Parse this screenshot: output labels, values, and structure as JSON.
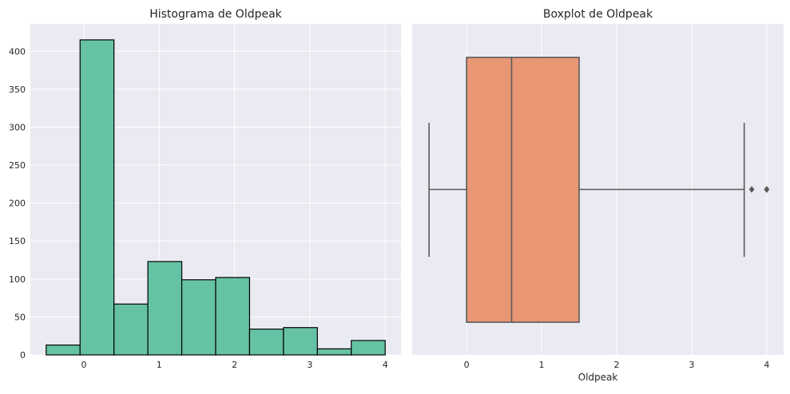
{
  "colors": {
    "plot_bg": "#eaeaf2",
    "grid": "#ffffff",
    "hist_fill": "#66c2a5",
    "hist_edge": "#000000",
    "box_fill": "#e99675",
    "box_line": "#595959"
  },
  "chart_data": [
    {
      "type": "histogram",
      "title": "Histograma de Oldpeak",
      "xlabel": "",
      "ylabel": "",
      "xlim": [
        -0.71,
        4.21
      ],
      "ylim": [
        0,
        436
      ],
      "xticks": [
        0,
        1,
        2,
        3,
        4
      ],
      "yticks": [
        0,
        50,
        100,
        150,
        200,
        250,
        300,
        350,
        400
      ],
      "grid": true,
      "bins": [
        {
          "x0": -0.5,
          "x1": -0.05,
          "count": 13
        },
        {
          "x0": -0.05,
          "x1": 0.4,
          "count": 415
        },
        {
          "x0": 0.4,
          "x1": 0.85,
          "count": 67
        },
        {
          "x0": 0.85,
          "x1": 1.3,
          "count": 123
        },
        {
          "x0": 1.3,
          "x1": 1.75,
          "count": 99
        },
        {
          "x0": 1.75,
          "x1": 2.2,
          "count": 102
        },
        {
          "x0": 2.2,
          "x1": 2.65,
          "count": 34
        },
        {
          "x0": 2.65,
          "x1": 3.1,
          "count": 36
        },
        {
          "x0": 3.1,
          "x1": 3.55,
          "count": 8
        },
        {
          "x0": 3.55,
          "x1": 4.0,
          "count": 19
        }
      ]
    },
    {
      "type": "boxplot",
      "title": "Boxplot de Oldpeak",
      "xlabel": "Oldpeak",
      "ylabel": "",
      "xlim": [
        -0.725,
        4.225
      ],
      "xticks": [
        0,
        1,
        2,
        3,
        4
      ],
      "grid": true,
      "whisker_low": -0.5,
      "q1": 0.0,
      "median": 0.6,
      "q3": 1.5,
      "whisker_high": 3.7,
      "outliers": [
        3.8,
        4.0,
        4.0
      ]
    }
  ]
}
